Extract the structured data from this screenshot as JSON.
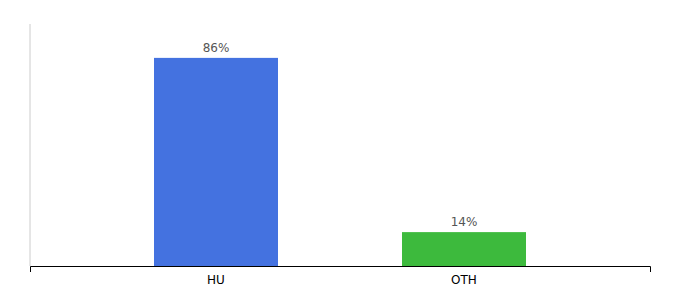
{
  "chart_data": {
    "type": "bar",
    "categories": [
      "HU",
      "OTH"
    ],
    "values": [
      86,
      14
    ],
    "value_labels": [
      "86%",
      "14%"
    ],
    "colors": [
      "#4472e0",
      "#3dba3d"
    ],
    "ylim": [
      0,
      100
    ],
    "data_labels": true,
    "tick_labels": "x"
  }
}
